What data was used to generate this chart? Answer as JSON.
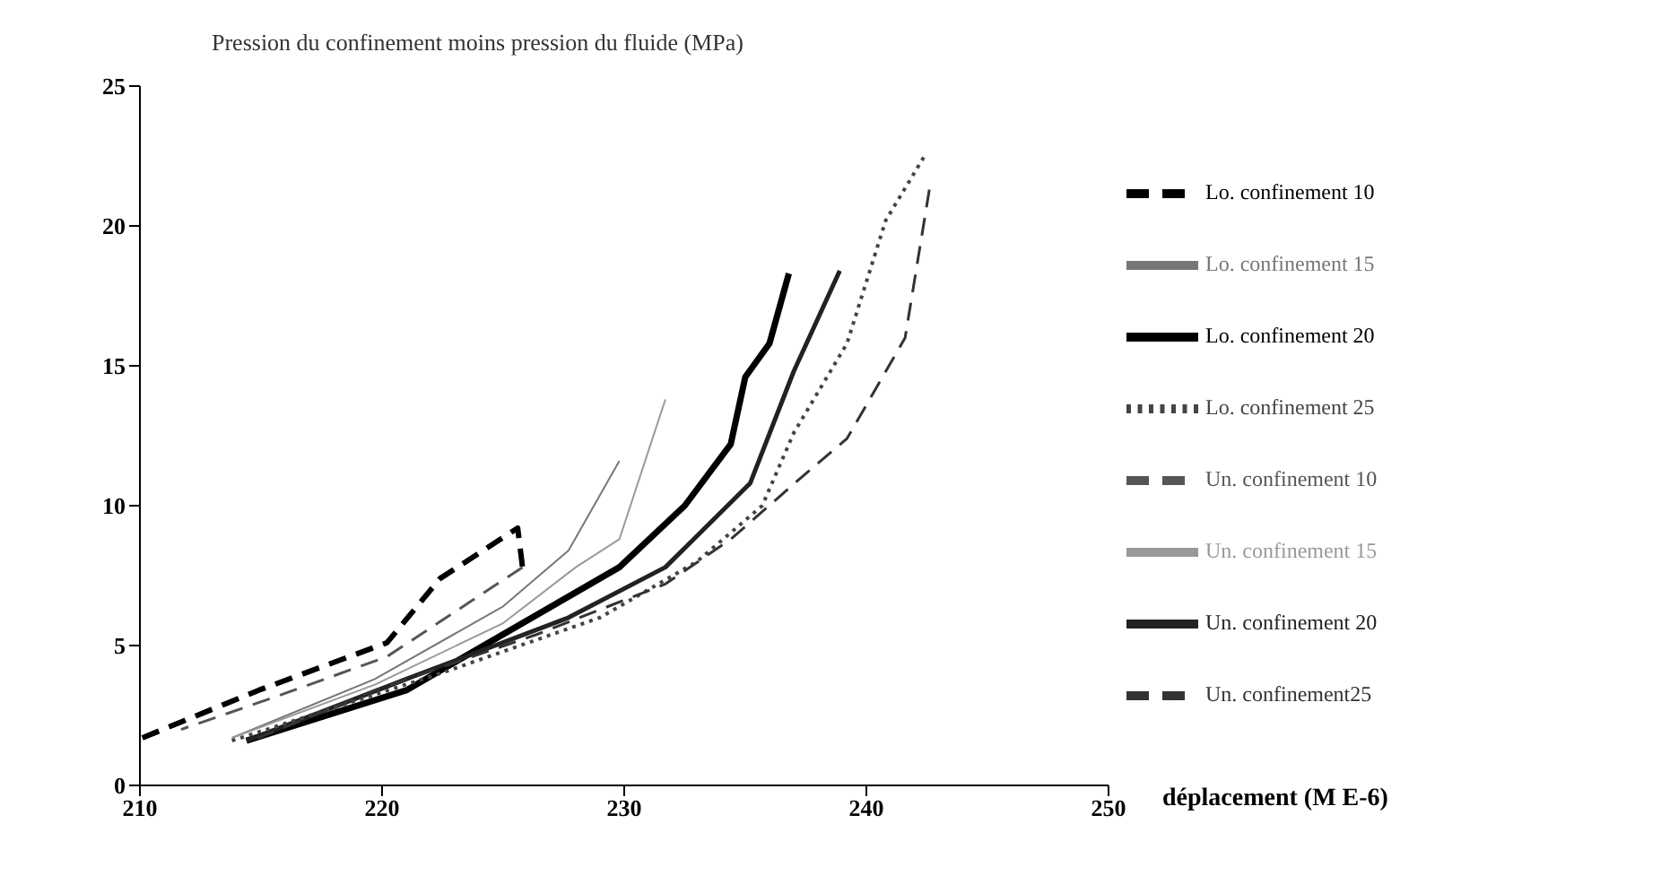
{
  "chart_data": {
    "type": "line",
    "title": "Pression du confinement moins pression du fluide (MPa)",
    "xlabel": "déplacement (M E-6)",
    "xlim": [
      210,
      250
    ],
    "xticks": [
      210,
      220,
      230,
      240,
      250
    ],
    "ylim": [
      0,
      25
    ],
    "yticks": [
      0,
      5,
      10,
      15,
      20,
      25
    ],
    "grid": false,
    "legend": "right",
    "marker": "none",
    "series": [
      {
        "name": "Lo. confinement 10",
        "color": "#000000",
        "line_style": "dashed",
        "x": [
          210.1,
          214.9,
          220.2,
          222.4,
          225.6,
          225.8
        ],
        "values": [
          1.7,
          3.4,
          5.1,
          7.4,
          9.2,
          7.8
        ]
      },
      {
        "name": "Un. confinement 10",
        "color": "#555555",
        "line_style": "dashed",
        "x": [
          225.8,
          223.7,
          220.2,
          215.7,
          211.7
        ],
        "values": [
          7.8,
          6.6,
          4.6,
          3.2,
          2.0
        ]
      },
      {
        "name": "Lo. confinement 15",
        "color": "#777777",
        "line_style": "solid",
        "x": [
          213.8,
          219.7,
          225,
          227.7,
          229.8
        ],
        "values": [
          1.7,
          3.8,
          6.4,
          8.4,
          11.6
        ]
      },
      {
        "name": "Un. confinement 15",
        "color": "#999999",
        "line_style": "solid",
        "x": [
          231.7,
          229.8,
          228,
          225,
          219.7,
          213.8
        ],
        "values": [
          13.8,
          8.8,
          7.8,
          5.8,
          3.6,
          1.7
        ]
      },
      {
        "name": "Lo. confinement 20",
        "color": "#000000",
        "line_style": "solid",
        "x": [
          214.4,
          221,
          229.8,
          232.5,
          234.4,
          235,
          236,
          236.8
        ],
        "values": [
          1.6,
          3.4,
          7.8,
          10,
          12.2,
          14.6,
          15.8,
          18.3
        ]
      },
      {
        "name": "Un. confinement 20",
        "color": "#222222",
        "line_style": "solid",
        "x": [
          238.9,
          237,
          235.2,
          231.7,
          227.7,
          221,
          214.4
        ],
        "values": [
          18.4,
          14.8,
          10.8,
          7.8,
          6.0,
          3.8,
          1.6
        ]
      },
      {
        "name": "Lo. confinement 25",
        "color": "#444444",
        "line_style": "dotted",
        "x": [
          213.8,
          222.4,
          229,
          233,
          235.7,
          237,
          239.2,
          240.8,
          242.4
        ],
        "values": [
          1.6,
          4,
          6,
          8,
          10,
          12.6,
          15.8,
          20.2,
          22.5
        ]
      },
      {
        "name": "Un. confinement25",
        "color": "#333333",
        "line_style": "dashed",
        "x": [
          242.6,
          241.6,
          239.2,
          237.3,
          234.4,
          231.7,
          226.4,
          219.7,
          214.9
        ],
        "values": [
          21.3,
          16,
          12.4,
          11,
          8.8,
          7.2,
          5.4,
          3.4,
          1.7
        ]
      }
    ]
  }
}
